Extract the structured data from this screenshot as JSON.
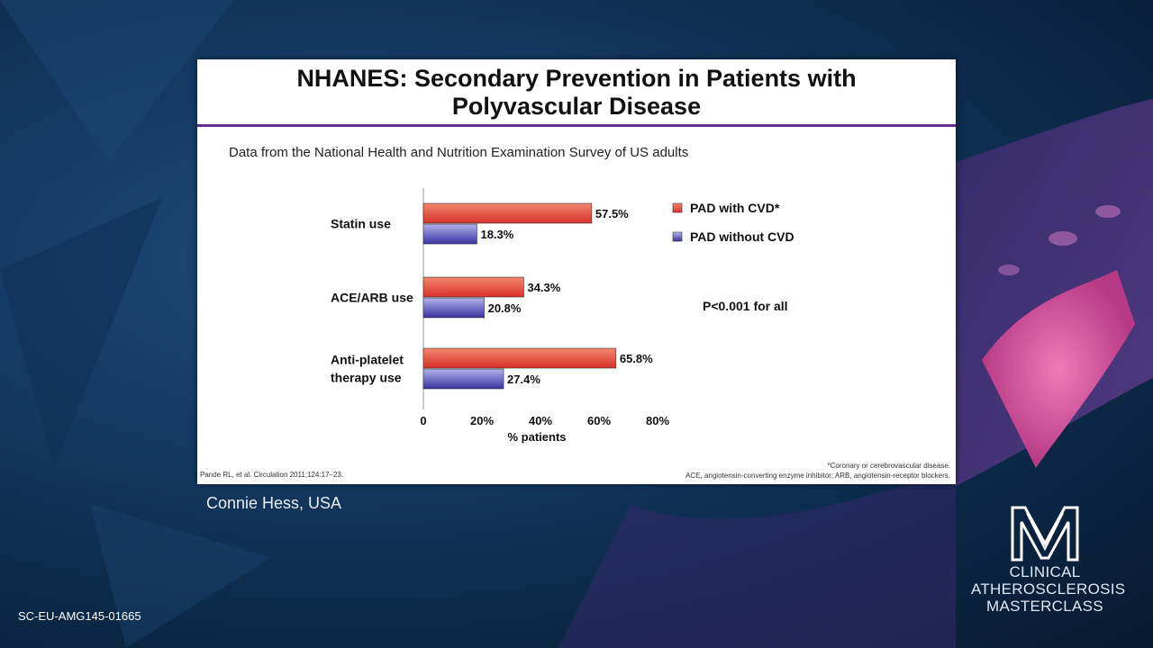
{
  "slide": {
    "title_line1": "NHANES: Secondary Prevention in Patients with",
    "title_line2": "Polyvascular Disease",
    "subtitle": "Data from the National Health and Nutrition Examination Survey of US adults",
    "reference": "Pande RL, et al. Circulation 2011;124:17–23.",
    "footnote_line1": "*Coronary or cerebrovascular disease.",
    "footnote_line2": "ACE, angiotensin-converting enzyme inhibitor; ARB, angiotensin-receptor blockers."
  },
  "presenter": "Connie Hess, USA",
  "code": "SC-EU-AMG145-01665",
  "logo": {
    "line1": "CLINICAL",
    "line2": "ATHEROSCLEROSIS",
    "line3": "MASTERCLASS"
  },
  "chart_data": {
    "type": "bar",
    "orientation": "horizontal",
    "categories": [
      [
        "Statin use"
      ],
      [
        "ACE/ARB use"
      ],
      [
        "Anti-platelet",
        "therapy use"
      ]
    ],
    "series": [
      {
        "name": "PAD with CVD*",
        "values": [
          57.5,
          34.3,
          65.8
        ],
        "labels": [
          "57.5%",
          "34.3%",
          "65.8%"
        ],
        "color": "#e8473a"
      },
      {
        "name": "PAD without CVD",
        "values": [
          18.3,
          20.8,
          27.4
        ],
        "labels": [
          "18.3%",
          "20.8%",
          "27.4%"
        ],
        "color": "#4a42b8"
      }
    ],
    "xlim": [
      0,
      80
    ],
    "xticks": [
      "0",
      "20%",
      "40%",
      "60%",
      "80%"
    ],
    "xlabel": "% patients",
    "annotation": "P<0.001 for all",
    "legend_position": "right"
  }
}
